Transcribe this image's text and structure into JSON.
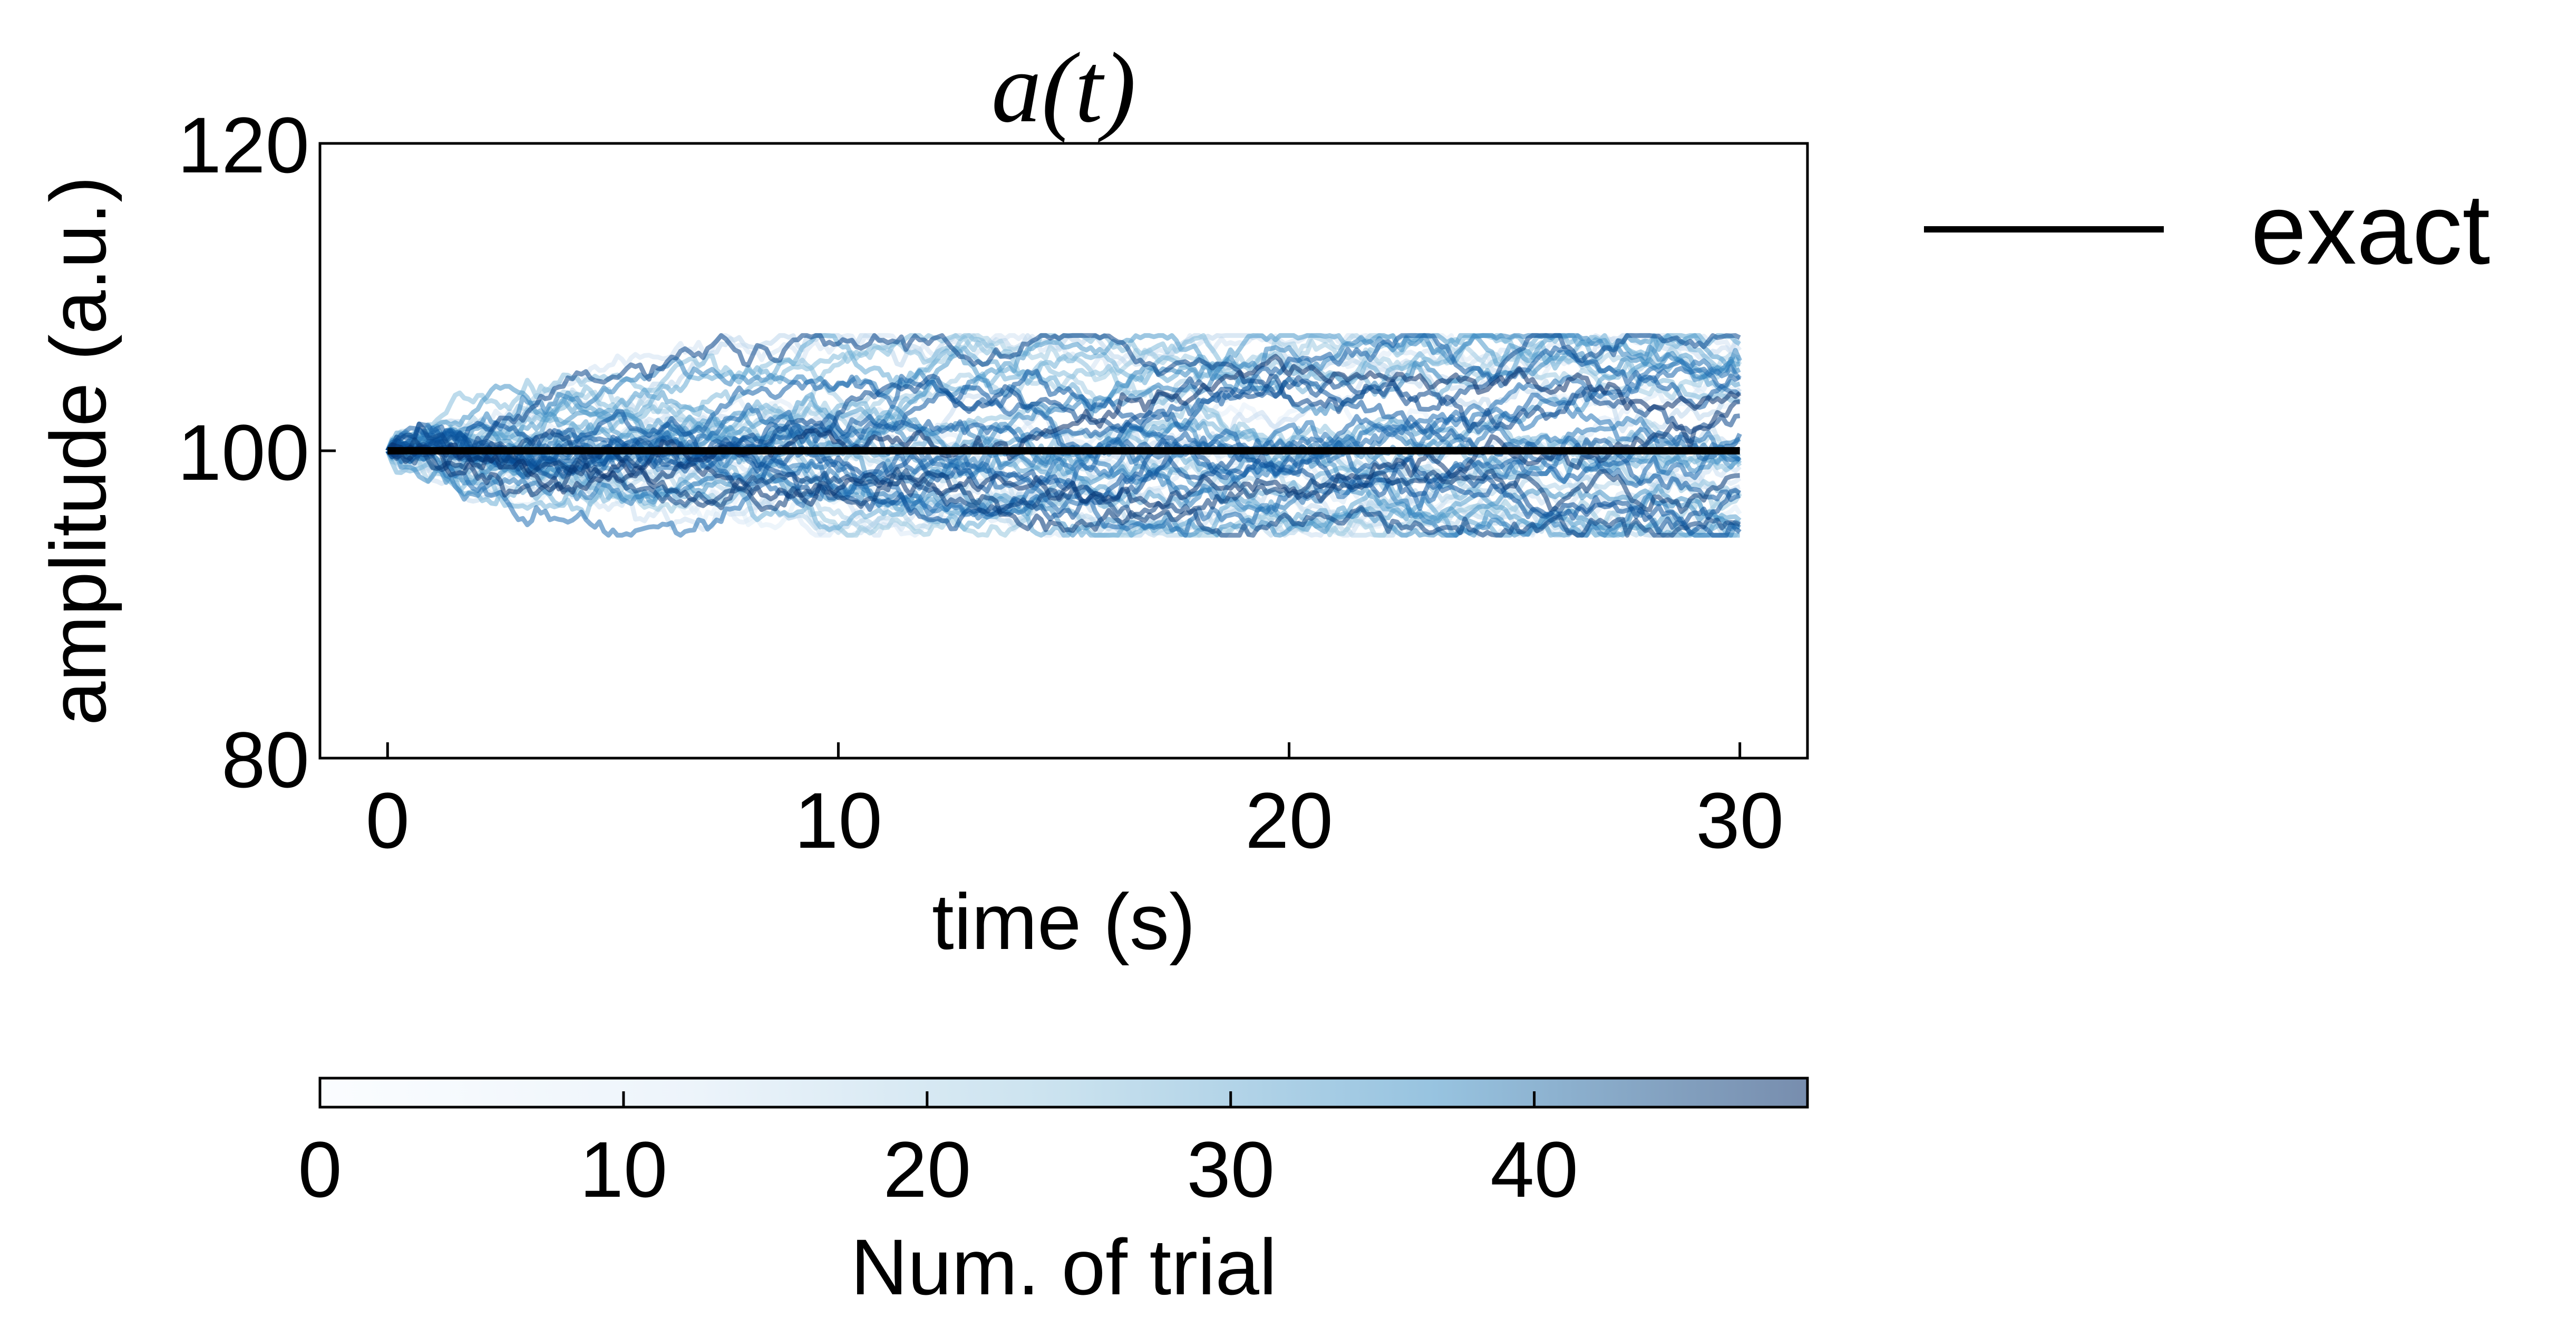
{
  "chart_data": {
    "type": "line",
    "title": "a(t)",
    "xlabel": "time (s)",
    "ylabel": "amplitude (a.u.)",
    "xlim": [
      -1.5,
      31.5
    ],
    "ylim": [
      80,
      120
    ],
    "xticks": [
      0,
      10,
      20,
      30
    ],
    "yticks": [
      80,
      100,
      120
    ],
    "xtick_labels": [
      "0",
      "10",
      "20",
      "30"
    ],
    "ytick_labels": [
      "80",
      "100",
      "120"
    ],
    "grid": false,
    "legend": {
      "placement": "outside-right",
      "entries": [
        {
          "label": "exact",
          "color": "#000000"
        }
      ]
    },
    "trials": {
      "count": 50,
      "t_start": 0,
      "t_end": 30,
      "start_value": 100,
      "end_range_min": 96.5,
      "end_range_max": 107,
      "colormap": "Blues"
    },
    "series": [
      {
        "name": "exact",
        "x": [
          0,
          30
        ],
        "values": [
          100,
          100
        ],
        "color": "#000000"
      }
    ],
    "colorbar": {
      "label": "Num. of trial",
      "range": [
        0,
        49
      ],
      "ticks": [
        0,
        10,
        20,
        30,
        40
      ],
      "tick_labels": [
        "0",
        "10",
        "20",
        "30",
        "40"
      ],
      "colormap": "Blues",
      "color_low": "#f7fbff",
      "color_high": "#08306b"
    }
  }
}
